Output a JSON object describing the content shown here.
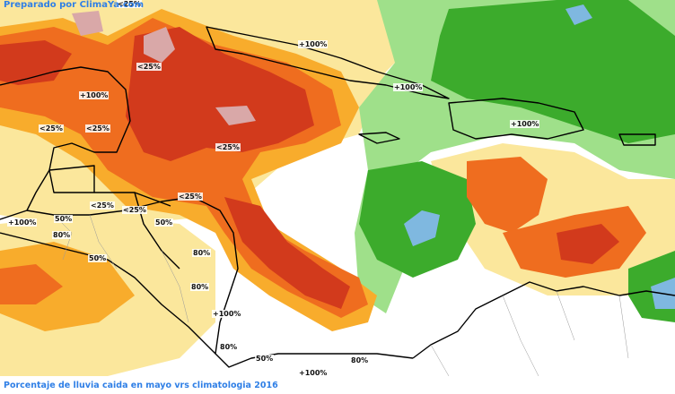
{
  "credit": "Preparado por ClimaYa.com",
  "caption": "Porcentaje de lluvia caida en mayo vrs climatologia 2016",
  "colors": {
    "ocean": "#ffffff",
    "very_dry": "#d9a8a8",
    "dry": "#d23a1c",
    "below": "#ef6d1f",
    "slightly_below": "#f8ac2c",
    "near_normal": "#fbe79c",
    "above": "#9fe08a",
    "well_above": "#3cab2c",
    "excess": "#7fb8e0",
    "borders": "#000000",
    "credit_text": "#2f7fe6"
  },
  "map_labels": [
    {
      "id": "l1",
      "text": "+100%"
    },
    {
      "id": "l2",
      "text": "<25%"
    },
    {
      "id": "l3",
      "text": "+100%"
    },
    {
      "id": "l4",
      "text": "+100%"
    },
    {
      "id": "l5",
      "text": "+100%"
    },
    {
      "id": "l6",
      "text": "<25%"
    },
    {
      "id": "l7",
      "text": "<25%"
    },
    {
      "id": "l8",
      "text": "<25%"
    },
    {
      "id": "l9",
      "text": "+100%"
    },
    {
      "id": "l10",
      "text": "<25%"
    },
    {
      "id": "l11",
      "text": "<25%"
    },
    {
      "id": "l12",
      "text": "50%"
    },
    {
      "id": "l13",
      "text": "50%"
    },
    {
      "id": "l14",
      "text": "80%"
    },
    {
      "id": "l15",
      "text": "50%"
    },
    {
      "id": "l16",
      "text": "80%"
    },
    {
      "id": "l17",
      "text": "80%"
    },
    {
      "id": "l18",
      "text": "+100%"
    },
    {
      "id": "l19",
      "text": "80%"
    },
    {
      "id": "l20",
      "text": "50%"
    },
    {
      "id": "l21",
      "text": "80%"
    },
    {
      "id": "l22",
      "text": "+100%"
    },
    {
      "id": "l23",
      "text": "<25%"
    },
    {
      "id": "l24",
      "text": "<25%"
    }
  ]
}
